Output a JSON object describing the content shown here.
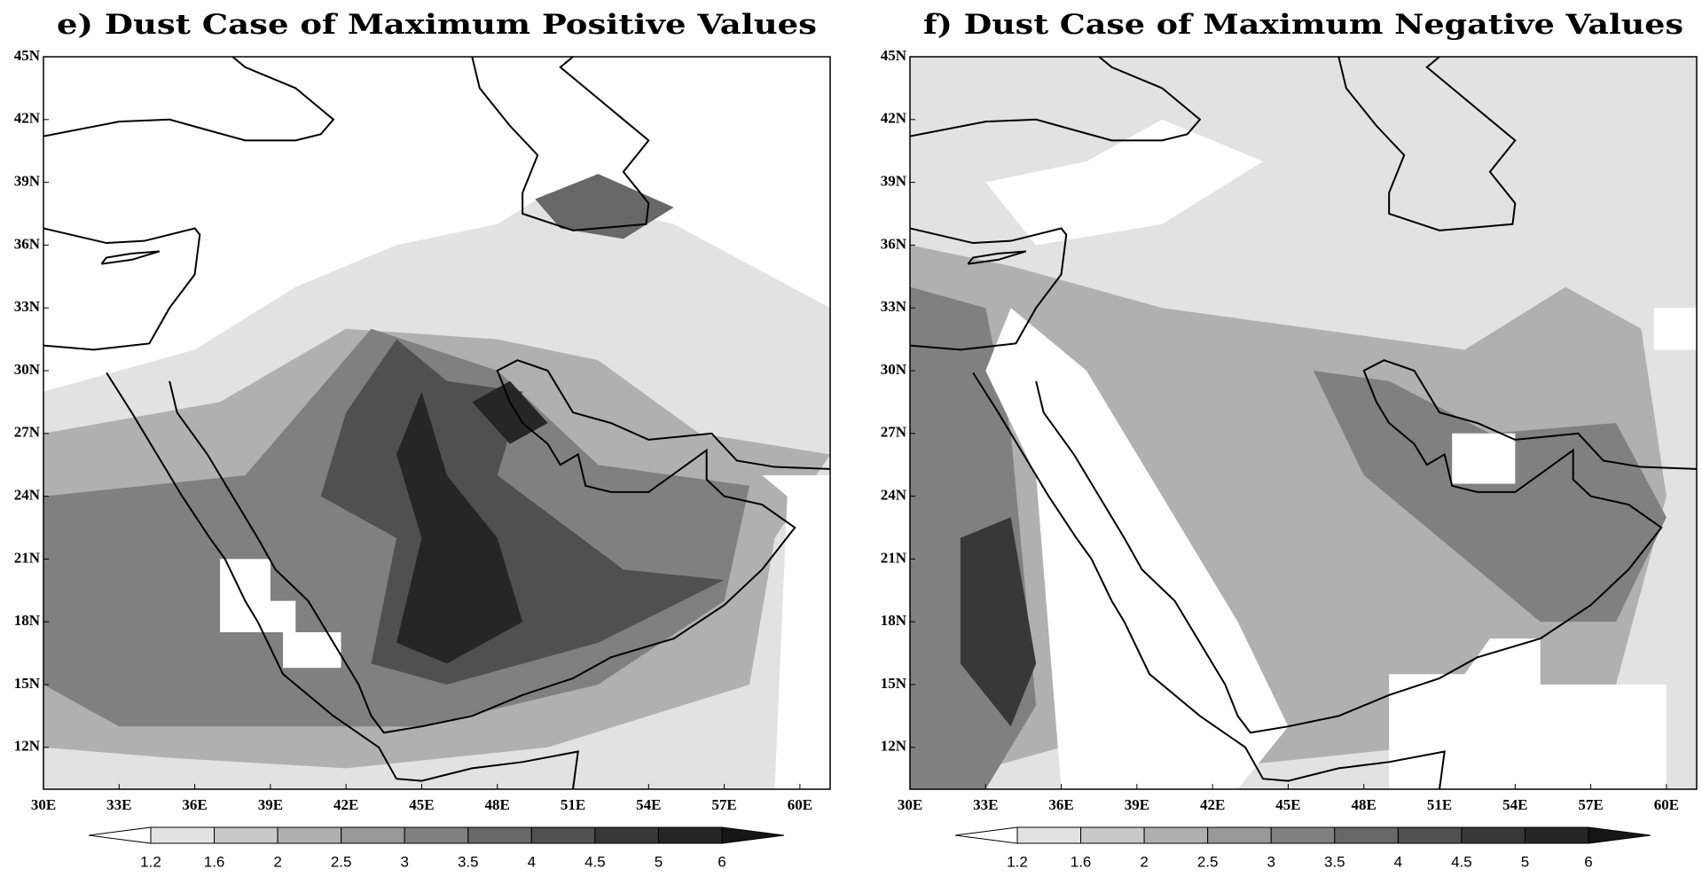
{
  "panels": [
    {
      "title": "e) Dust Case of Maximum Positive Values",
      "x_ticks": [
        "30E",
        "33E",
        "36E",
        "39E",
        "42E",
        "45E",
        "48E",
        "51E",
        "54E",
        "57E",
        "60E"
      ],
      "y_ticks": [
        "12N",
        "15N",
        "18N",
        "21N",
        "24N",
        "27N",
        "30N",
        "33N",
        "36N",
        "39N",
        "42N",
        "45N"
      ],
      "colorbar": {
        "levels": [
          "1.2",
          "1.6",
          "2",
          "2.5",
          "3",
          "3.5",
          "4",
          "4.5",
          "5",
          "6"
        ],
        "colors": [
          "#ffffff",
          "#e2e2e2",
          "#c8c8c8",
          "#b0b0b0",
          "#989898",
          "#808080",
          "#686868",
          "#505050",
          "#383838",
          "#262626",
          "#161616"
        ]
      }
    },
    {
      "title": "f) Dust Case of Maximum Negative Values",
      "x_ticks": [
        "30E",
        "33E",
        "36E",
        "39E",
        "42E",
        "45E",
        "48E",
        "51E",
        "54E",
        "57E",
        "60E"
      ],
      "y_ticks": [
        "12N",
        "15N",
        "18N",
        "21N",
        "24N",
        "27N",
        "30N",
        "33N",
        "36N",
        "39N",
        "42N",
        "45N"
      ],
      "colorbar": {
        "levels": [
          "1.2",
          "1.6",
          "2",
          "2.5",
          "3",
          "3.5",
          "4",
          "4.5",
          "5",
          "6"
        ],
        "colors": [
          "#ffffff",
          "#e2e2e2",
          "#c8c8c8",
          "#b0b0b0",
          "#989898",
          "#808080",
          "#686868",
          "#505050",
          "#383838",
          "#262626",
          "#161616"
        ]
      }
    }
  ]
}
